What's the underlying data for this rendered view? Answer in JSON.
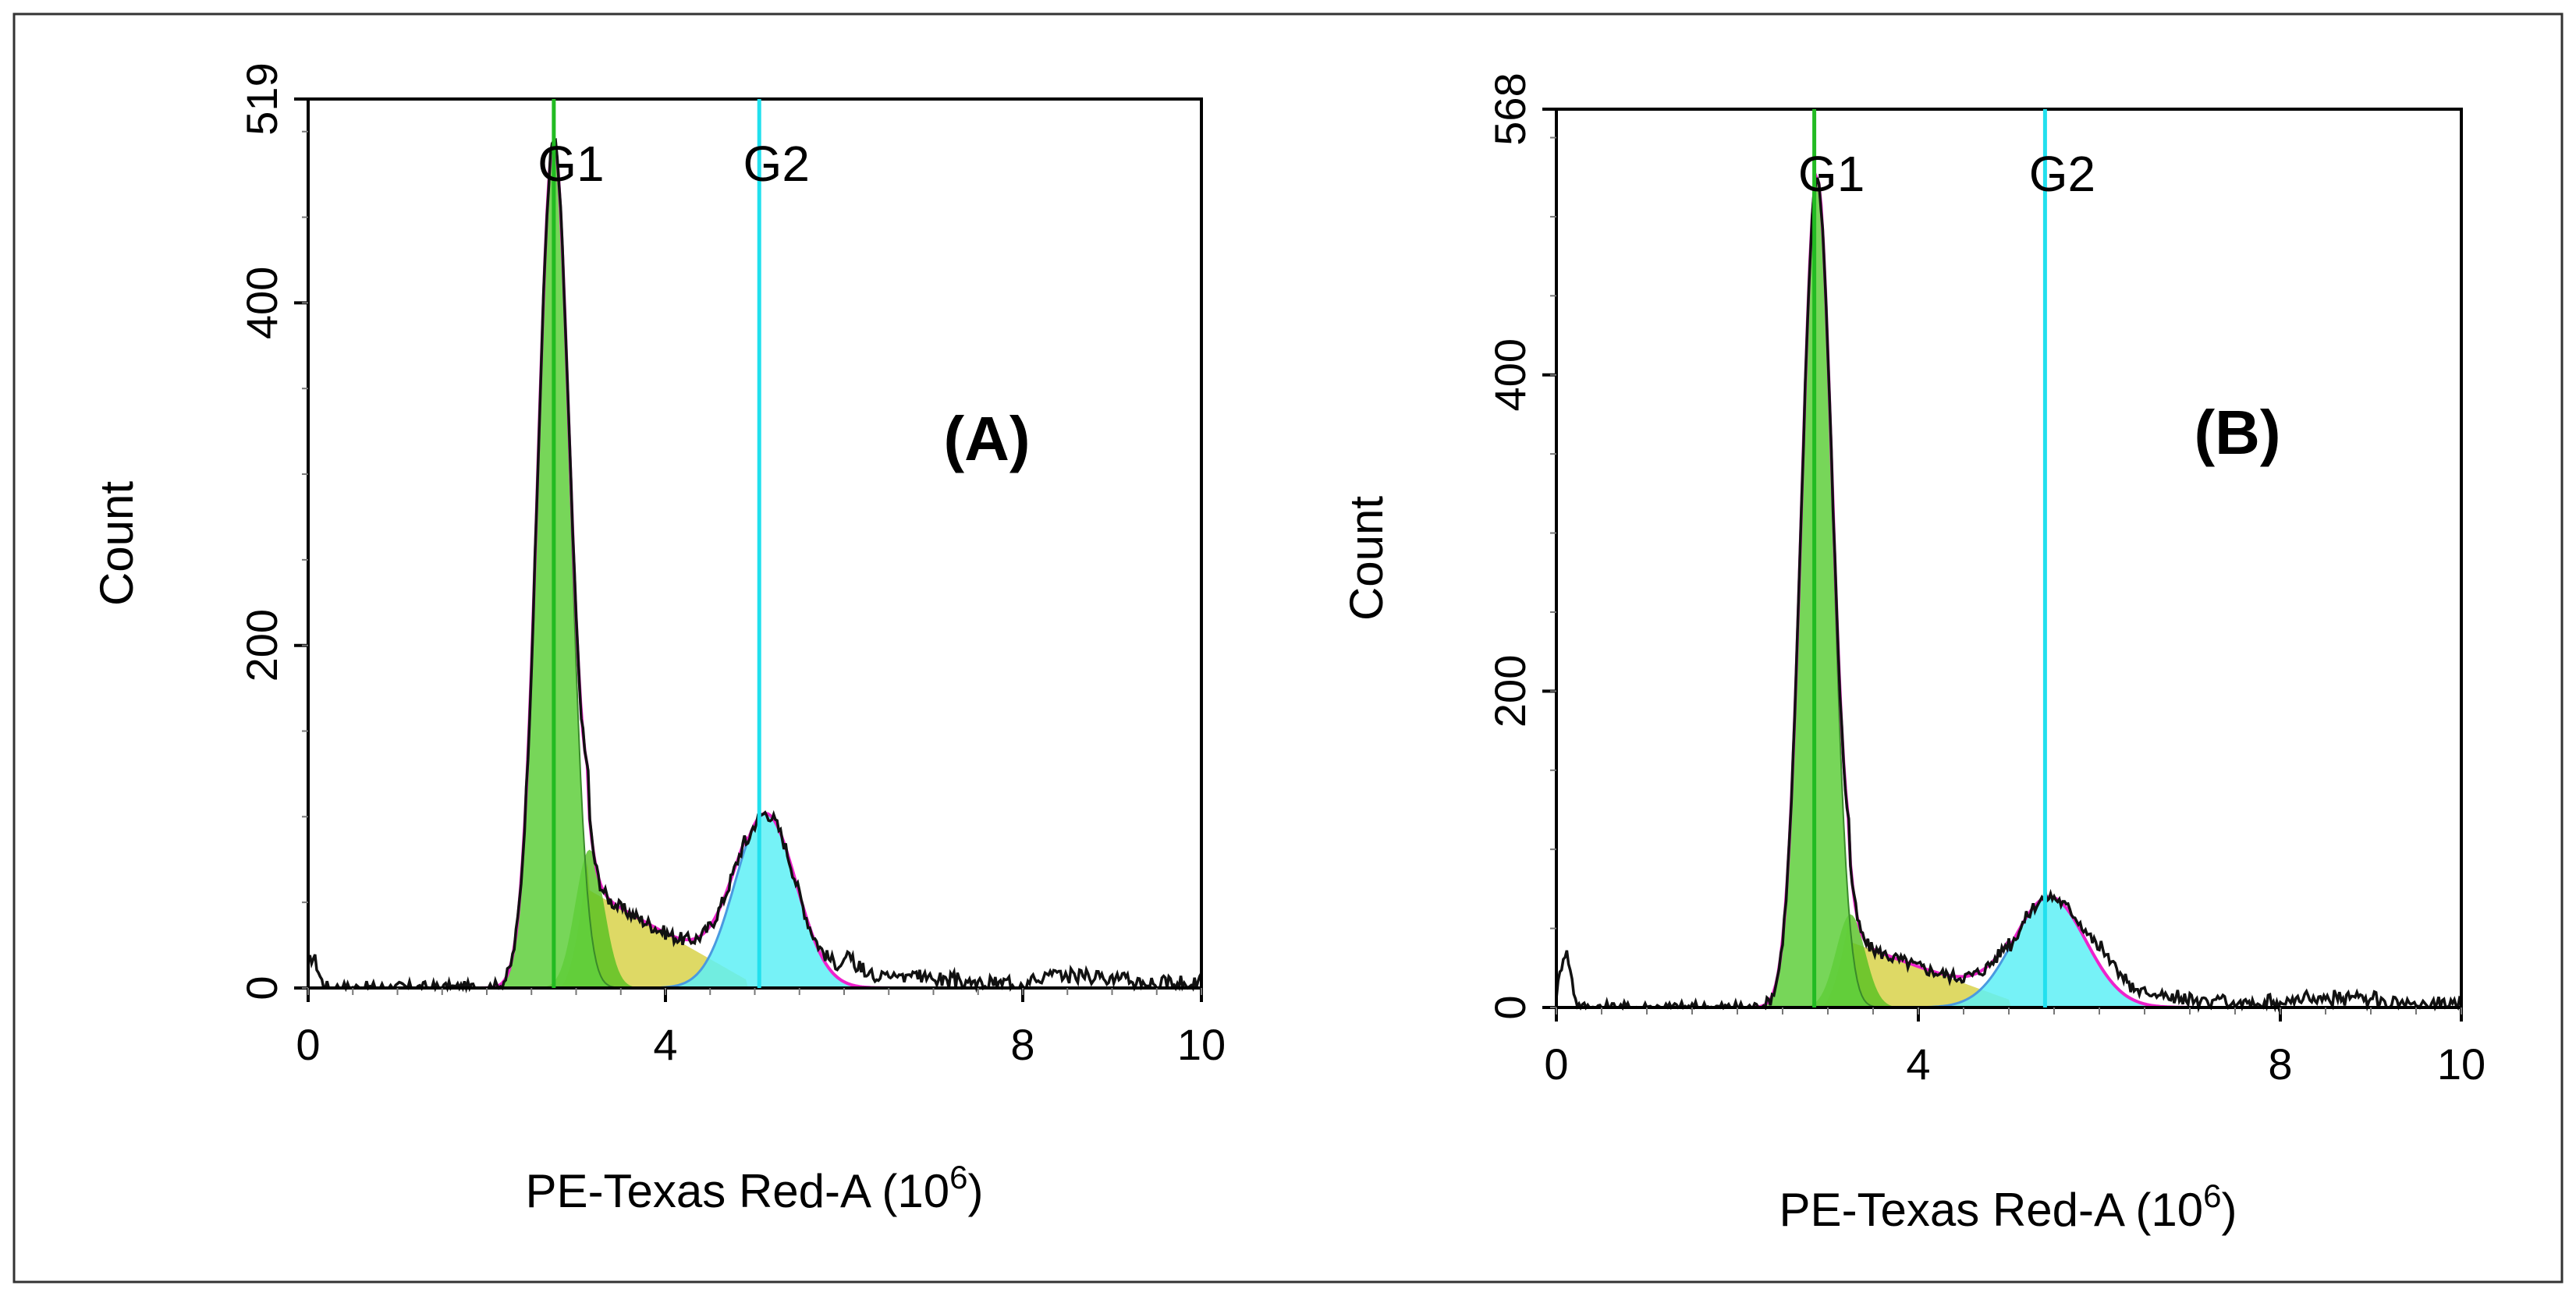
{
  "figure": {
    "panels": [
      "A",
      "B"
    ]
  },
  "chart_data": [
    {
      "type": "area",
      "panel_label": "(A)",
      "title": "",
      "xlabel": "PE-Texas Red-A",
      "xlabel_unit": "(10",
      "xlabel_exp": "6",
      "xlabel_close": ")",
      "ylabel": "Count",
      "xlim": [
        0,
        10
      ],
      "ylim": [
        0,
        519
      ],
      "xticks": [
        "0",
        "4",
        "8",
        "10"
      ],
      "xtick_values": [
        0,
        4,
        8,
        10
      ],
      "yticks": [
        "0",
        "200",
        "400",
        "519"
      ],
      "ytick_values": [
        0,
        200,
        400,
        519
      ],
      "gates": [
        {
          "name": "G1",
          "x": 2.75,
          "color": "#22bb22"
        },
        {
          "name": "G2",
          "x": 5.05,
          "color": "#22e0ee"
        }
      ],
      "g1": {
        "mu": 2.75,
        "sigma": 0.18,
        "amp": 495
      },
      "g2": {
        "mu": 5.12,
        "sigma": 0.34,
        "amp": 102
      },
      "s_phase": {
        "start": 2.8,
        "end": 4.9,
        "peak_x": 3.15,
        "peak_y": 85,
        "low_y": 40
      },
      "noise_tail": [
        0.05,
        18,
        6.3,
        10
      ],
      "colors": {
        "g1": "#5fcf3c",
        "s": "#d8d24a",
        "g2": "#5ef0f6",
        "fit": "#ee22cc",
        "hist": "#111111",
        "g2_edge": "#4a9ae0"
      }
    },
    {
      "type": "area",
      "panel_label": "(B)",
      "title": "",
      "xlabel": "PE-Texas Red-A",
      "xlabel_unit": "(10",
      "xlabel_exp": "6",
      "xlabel_close": ")",
      "ylabel": "Count",
      "xlim": [
        0,
        10
      ],
      "ylim": [
        0,
        568
      ],
      "xticks": [
        "0",
        "4",
        "8",
        "10"
      ],
      "xtick_values": [
        0,
        4,
        8,
        10
      ],
      "yticks": [
        "0",
        "200",
        "400",
        "568"
      ],
      "ytick_values": [
        0,
        200,
        400,
        568
      ],
      "gates": [
        {
          "name": "G1",
          "x": 2.85,
          "color": "#22bb22"
        },
        {
          "name": "G2",
          "x": 5.4,
          "color": "#22e0ee"
        }
      ],
      "g1": {
        "mu": 2.88,
        "sigma": 0.17,
        "amp": 525
      },
      "g2": {
        "mu": 5.45,
        "sigma": 0.4,
        "amp": 70
      },
      "s_phase": {
        "start": 2.9,
        "end": 5.0,
        "peak_x": 3.25,
        "peak_y": 62,
        "low_y": 28
      },
      "noise_tail": [
        0.1,
        35,
        6.6,
        8
      ],
      "colors": {
        "g1": "#5fcf3c",
        "s": "#d8d24a",
        "g2": "#5ef0f6",
        "fit": "#ee22cc",
        "hist": "#111111",
        "g2_edge": "#4a9ae0"
      }
    }
  ]
}
